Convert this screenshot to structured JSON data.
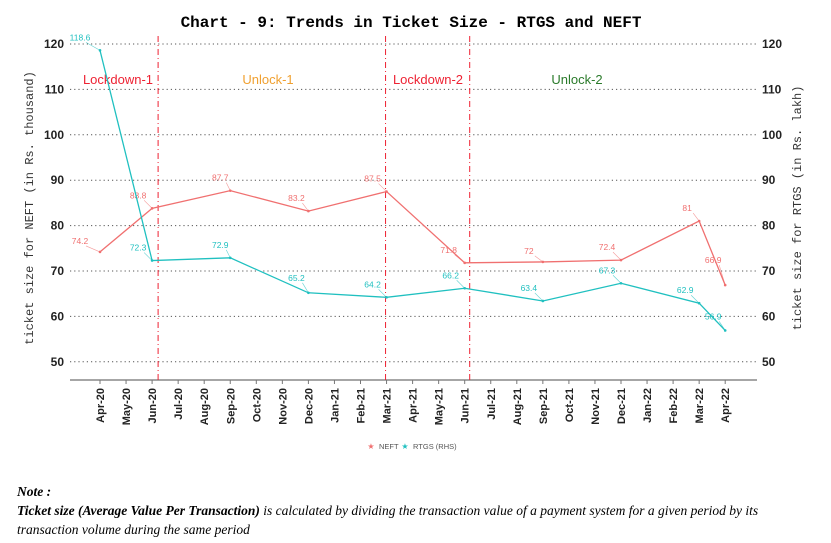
{
  "chart_data": {
    "type": "line",
    "title": "Chart - 9: Trends in Ticket Size - RTGS and NEFT",
    "ylabel_left": "ticket size for NEFT (in Rs. thousand)",
    "ylabel_right": "ticket size for RTGS (in Rs. lakh)",
    "xlabel": "",
    "ylim": [
      50,
      120
    ],
    "yticks": [
      50,
      60,
      70,
      80,
      90,
      100,
      110,
      120
    ],
    "grid": "horizontal dotted",
    "legend_position": "bottom-center",
    "x_categories": [
      "Apr-20",
      "May-20",
      "Jun-20",
      "Jul-20",
      "Aug-20",
      "Sep-20",
      "Oct-20",
      "Nov-20",
      "Dec-20",
      "Jan-21",
      "Feb-21",
      "Mar-21",
      "Apr-21",
      "May-21",
      "Jun-21",
      "Jul-21",
      "Aug-21",
      "Sep-21",
      "Oct-21",
      "Nov-21",
      "Dec-21",
      "Jan-22",
      "Feb-22",
      "Mar-22",
      "Apr-22"
    ],
    "x": [
      "Apr-20",
      "Jun-20",
      "Sep-20",
      "Dec-20",
      "Mar-21",
      "Jun-21",
      "Sep-21",
      "Dec-21",
      "Mar-22",
      "Apr-22"
    ],
    "series": [
      {
        "name": "NEFT",
        "color": "#f07070",
        "values": [
          74.2,
          83.8,
          87.7,
          83.2,
          87.5,
          71.8,
          72,
          72.4,
          81,
          66.9
        ]
      },
      {
        "name": "RTGS (RHS)",
        "color": "#20c0c0",
        "values": [
          118.6,
          72.3,
          72.9,
          65.2,
          64.2,
          66.2,
          63.4,
          67.3,
          62.9,
          56.9
        ]
      }
    ],
    "phases": [
      {
        "label": "Lockdown-1",
        "color": "#ee2233"
      },
      {
        "label": "Unlock-1",
        "color": "#f0a030"
      },
      {
        "label": "Lockdown-2",
        "color": "#ee2233"
      },
      {
        "label": "Unlock-2",
        "color": "#2a7a2a"
      }
    ],
    "phase_boundaries": [
      "Jun-20",
      "Mar-21",
      "Jun-21"
    ],
    "boundary_color": "#ee2233"
  },
  "note": {
    "title": "Note :",
    "bold_text": "Ticket size (Average Value Per Transaction)",
    "text": " is calculated by dividing the transaction value of a payment system for a given period by its transaction volume during the same period"
  }
}
